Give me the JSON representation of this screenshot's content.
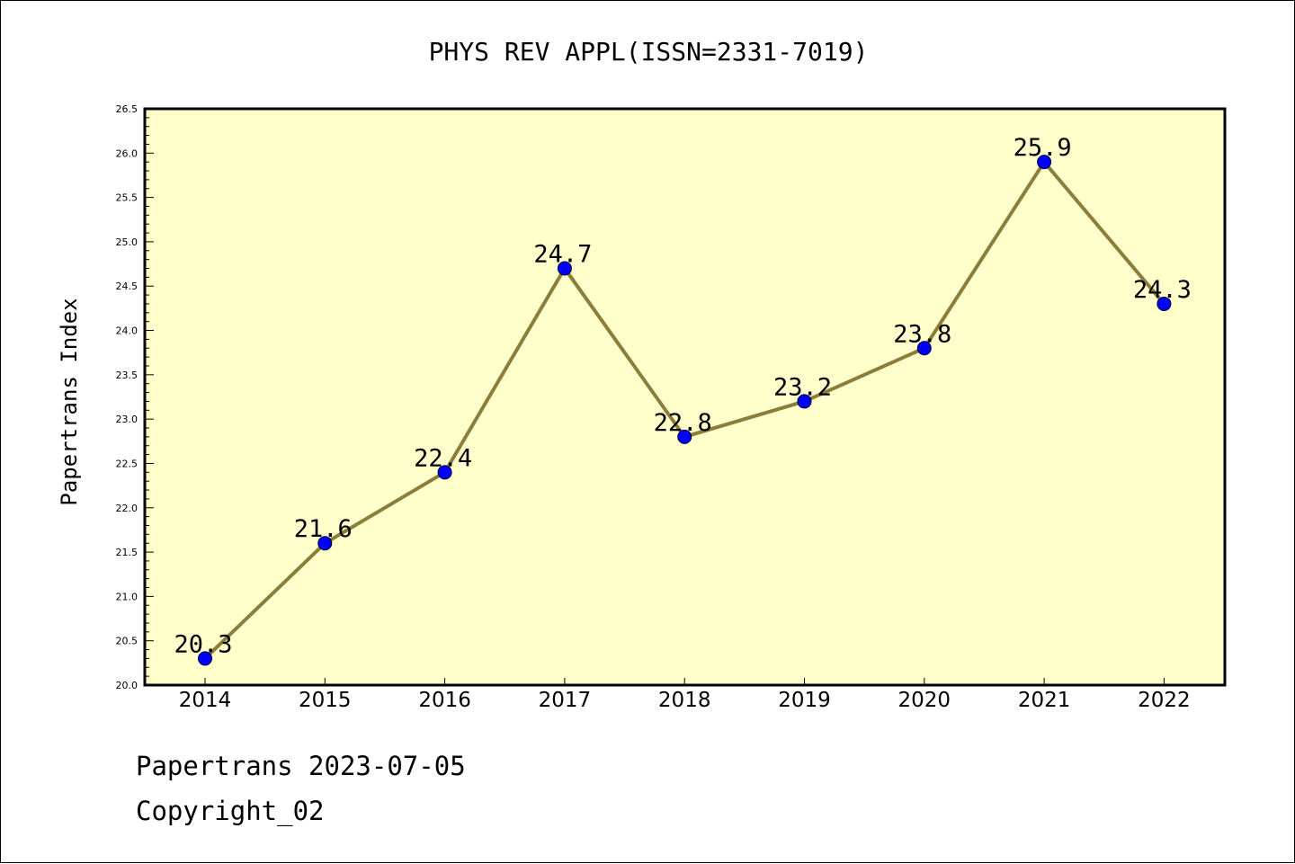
{
  "colors": {
    "plot_background": "#ffffcc",
    "line": "#8b7d3a",
    "marker": "#0000ff",
    "axis": "#000000"
  },
  "chart_data": {
    "type": "line",
    "title": "PHYS REV APPL(ISSN=2331-7019)",
    "xlabel": "",
    "ylabel": "Papertrans Index",
    "categories": [
      "2014",
      "2015",
      "2016",
      "2017",
      "2018",
      "2019",
      "2020",
      "2021",
      "2022"
    ],
    "values": [
      20.3,
      21.6,
      22.4,
      24.7,
      22.8,
      23.2,
      23.8,
      25.9,
      24.3
    ],
    "data_labels": [
      "20.3",
      "21.6",
      "22.4",
      "24.7",
      "22.8",
      "23.2",
      "23.8",
      "25.9",
      "24.3"
    ],
    "ylim": [
      20.0,
      26.5
    ],
    "yticks": [
      "20.0",
      "20.5",
      "21.0",
      "21.5",
      "22.0",
      "22.5",
      "23.0",
      "23.5",
      "24.0",
      "24.5",
      "25.0",
      "25.5",
      "26.0",
      "26.5"
    ],
    "grid": false,
    "legend": "none"
  },
  "footer": {
    "date_text": "Papertrans 2023-07-05",
    "copyright": "Copyright_02"
  }
}
